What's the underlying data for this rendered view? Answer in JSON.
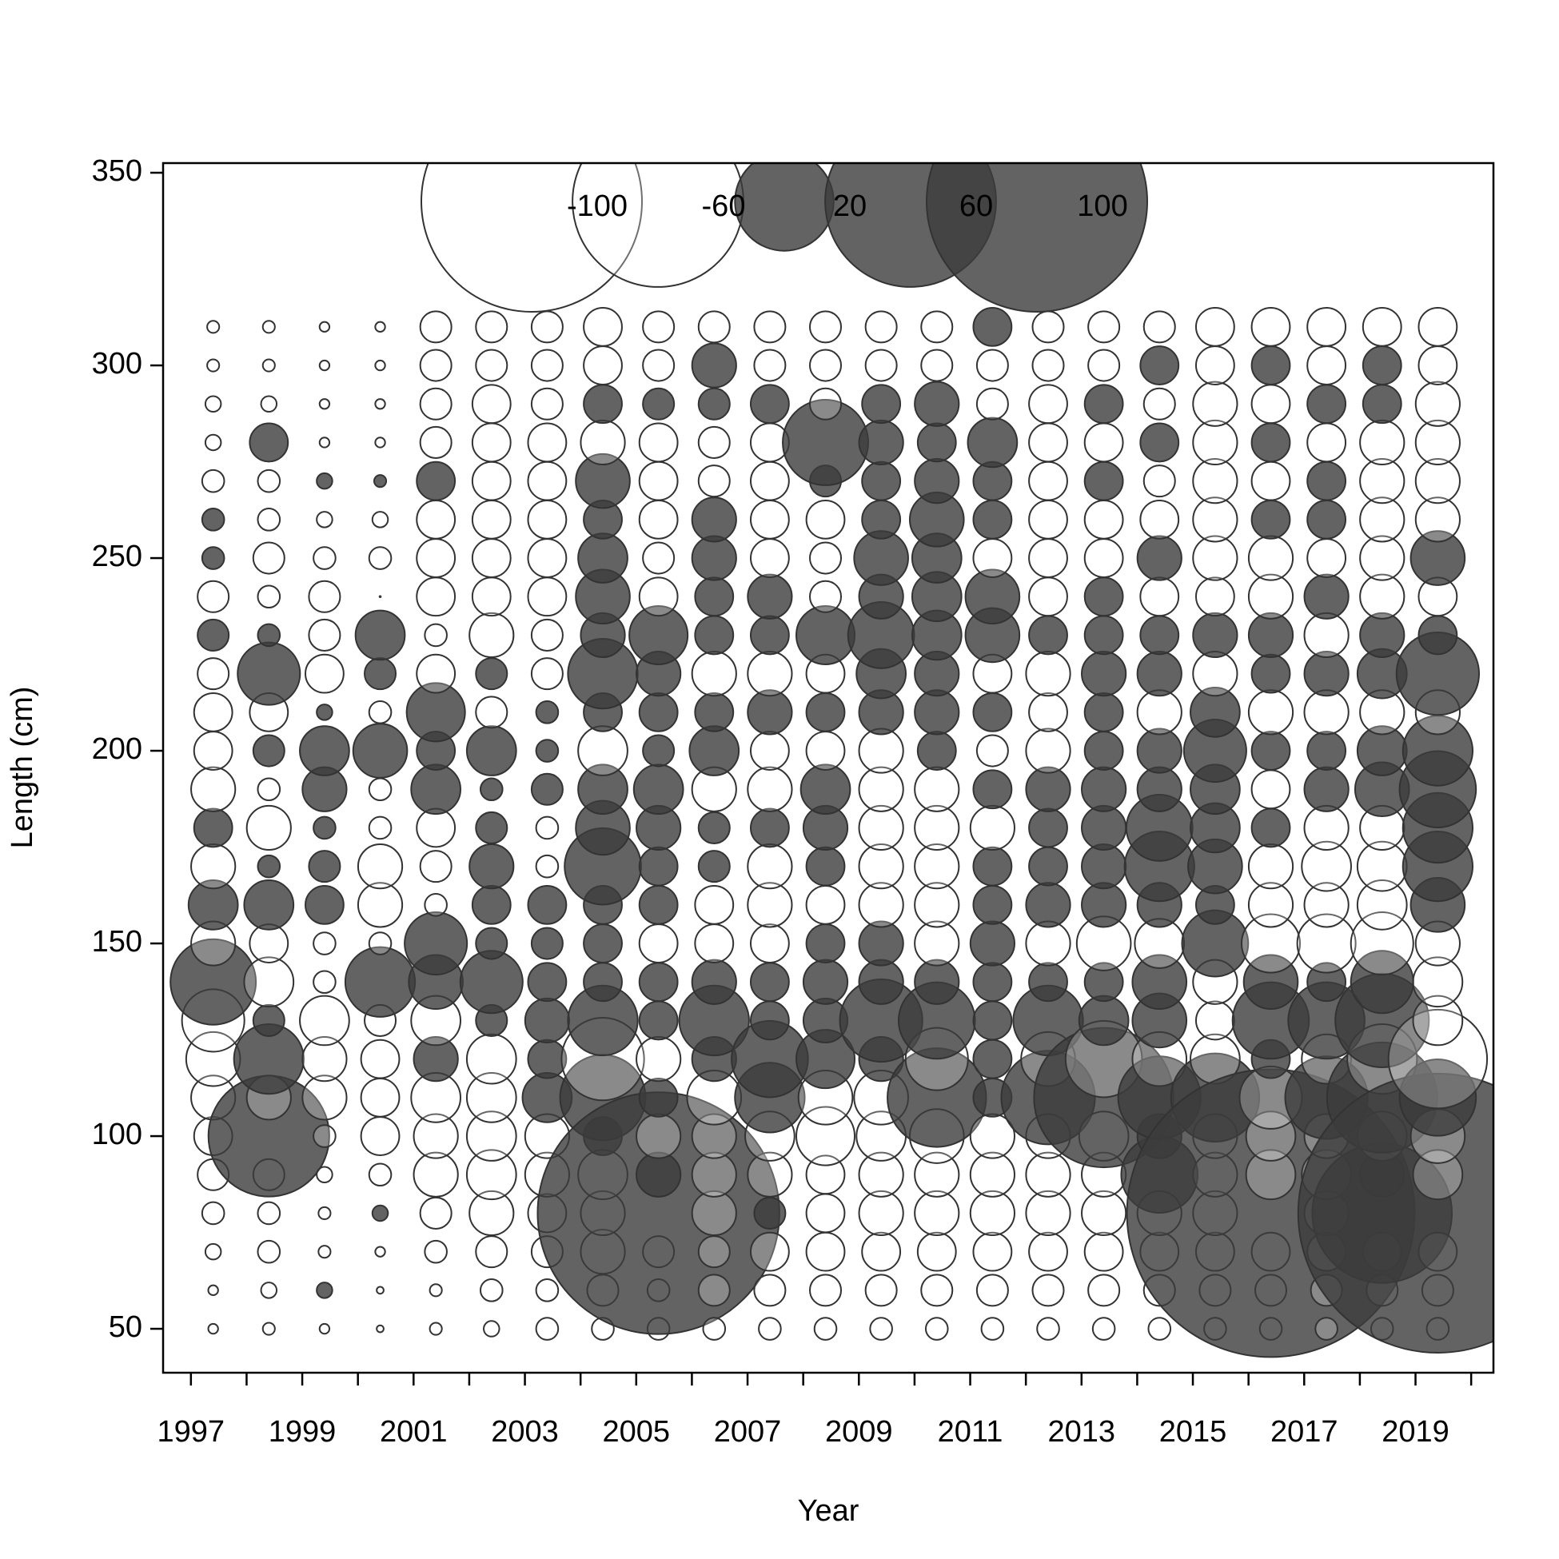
{
  "chart_data": {
    "type": "bubble",
    "x_label": "Year",
    "y_label": "Length (cm)",
    "xlim": [
      1996.5,
      2020.4
    ],
    "ylim": [
      38.6,
      352.5
    ],
    "xticks": [
      1997,
      1999,
      2001,
      2003,
      2005,
      2007,
      2009,
      2011,
      2013,
      2015,
      2017,
      2019
    ],
    "xminor_ticks": [
      1998,
      2000,
      2002,
      2004,
      2006,
      2008,
      2010,
      2012,
      2014,
      2016,
      2018,
      2020
    ],
    "yticks": [
      50,
      100,
      150,
      200,
      250,
      300,
      350
    ],
    "colors": {
      "positive": "#3c3c3c",
      "negative": "#ffffff",
      "outline": "#333333"
    },
    "size_legend": [
      -100,
      -60,
      20,
      60,
      100
    ],
    "x": [
      1997.4,
      1998.4,
      1999.4,
      2000.4,
      2001.4,
      2002.4,
      2003.4,
      2004.4,
      2005.4,
      2006.4,
      2007.4,
      2008.4,
      2009.4,
      2010.4,
      2011.4,
      2012.4,
      2013.4,
      2014.4,
      2015.4,
      2016.4,
      2017.4,
      2018.4,
      2019.4
    ],
    "y": [
      50,
      60,
      70,
      80,
      90,
      100,
      110,
      120,
      130,
      140,
      150,
      160,
      170,
      180,
      190,
      200,
      210,
      220,
      230,
      240,
      250,
      260,
      270,
      280,
      290,
      300,
      310
    ],
    "values": [
      [
        -0.2,
        -0.2,
        -0.5,
        -1,
        -2,
        -3,
        -4,
        -6,
        -8,
        15,
        -4,
        5,
        -4,
        3,
        -4,
        -3,
        -3,
        -2,
        2,
        -2,
        1,
        1,
        -1,
        -0.5,
        -0.5,
        -0.3,
        -0.3
      ],
      [
        -0.3,
        -0.5,
        -1,
        -1,
        -2,
        30,
        -4,
        10,
        2,
        -5,
        -3,
        5,
        1,
        -4,
        -1,
        2,
        -3,
        8,
        1,
        -1,
        -2,
        -1,
        -1,
        3,
        -0.5,
        -0.3,
        -0.3
      ],
      [
        -0.2,
        0.5,
        -0.3,
        -0.3,
        -0.5,
        -1,
        -4,
        -4,
        -5,
        -1,
        -1,
        3,
        2,
        1,
        4,
        5,
        0.5,
        -3,
        -2,
        -2,
        -1,
        -0.5,
        0.5,
        -0.2,
        -0.2,
        -0.2,
        -0.2
      ],
      [
        -0.1,
        -0.1,
        -0.2,
        0.5,
        -1,
        -3,
        -3,
        -3,
        -2,
        10,
        -1,
        -4,
        -4,
        -1,
        -1,
        6,
        -1,
        2,
        5,
        0,
        -1,
        -0.5,
        0.3,
        -0.2,
        -0.2,
        -0.2,
        -0.2
      ],
      [
        -0.3,
        -0.3,
        -1,
        -2,
        -4,
        -4,
        -5,
        4,
        -5,
        6,
        8,
        -1,
        -2,
        -3,
        5,
        3,
        7,
        -3,
        -1,
        -3,
        -3,
        -3,
        3,
        -2,
        -2,
        -2,
        -2
      ],
      [
        -0.5,
        -1,
        -2,
        -4,
        -5,
        -5,
        -5,
        -5,
        2,
        8,
        2,
        3,
        4,
        2,
        1,
        5,
        -2,
        2,
        -4,
        -3,
        -3,
        -3,
        -3,
        -3,
        -3,
        -2,
        -2
      ],
      [
        -1,
        -1,
        -2,
        -3,
        -4,
        -4,
        5,
        3,
        4,
        3,
        2,
        3,
        -1,
        -1,
        2,
        1,
        1,
        -2,
        -2,
        -3,
        -3,
        -3,
        -3,
        -3,
        -2,
        -2,
        -2
      ],
      [
        -1,
        -2,
        -4,
        -4,
        -5,
        3,
        15,
        -14,
        10,
        3,
        3,
        3,
        12,
        6,
        5,
        -5,
        3,
        10,
        4,
        6,
        5,
        3,
        6,
        -4,
        3,
        -3,
        -3
      ],
      [
        -1,
        -1,
        -2,
        120,
        4,
        -4,
        3,
        -4,
        3,
        3,
        -3,
        3,
        3,
        4,
        5,
        2,
        3,
        4,
        7,
        -3,
        -2,
        -3,
        -3,
        -3,
        2,
        -2,
        -2
      ],
      [
        -1,
        -2,
        -2,
        -4,
        -4,
        -4,
        -6,
        4,
        10,
        4,
        -3,
        -3,
        2,
        2,
        -4,
        5,
        3,
        -4,
        3,
        3,
        4,
        4,
        -2,
        -2,
        2,
        4,
        -2
      ],
      [
        -1,
        -2,
        -3,
        2,
        -4,
        -5,
        10,
        12,
        3,
        3,
        -3,
        -4,
        -4,
        3,
        -4,
        -3,
        4,
        -4,
        3,
        4,
        -3,
        -3,
        -3,
        -3,
        3,
        -2,
        -2
      ],
      [
        -1,
        -2,
        -3,
        -3,
        -3,
        -7,
        -6,
        7,
        4,
        4,
        3,
        -3,
        3,
        4,
        5,
        -3,
        3,
        -3,
        7,
        -2,
        -2,
        -3,
        2,
        15,
        -2,
        -2,
        -2
      ],
      [
        -1,
        -2,
        -3,
        -4,
        -4,
        -5,
        -6,
        4,
        14,
        4,
        4,
        -4,
        -4,
        -4,
        -4,
        -4,
        4,
        5,
        9,
        4,
        6,
        3,
        3,
        4,
        3,
        -2,
        -2
      ],
      [
        -1,
        -2,
        -3,
        -4,
        -4,
        -6,
        20,
        -8,
        12,
        4,
        -4,
        -4,
        -4,
        -4,
        -4,
        3,
        4,
        4,
        5,
        5,
        5,
        6,
        4,
        3,
        4,
        -2,
        -2
      ],
      [
        -1,
        -2,
        -3,
        -4,
        -4,
        -4,
        3,
        3,
        3,
        3,
        4,
        3,
        3,
        -4,
        3,
        -2,
        3,
        -3,
        6,
        6,
        -3,
        3,
        3,
        5,
        -2,
        -2,
        3
      ],
      [
        -1,
        -2,
        -3,
        -4,
        -4,
        -4,
        18,
        -6,
        10,
        3,
        -4,
        4,
        3,
        3,
        4,
        -4,
        -3,
        -4,
        3,
        -3,
        -3,
        -3,
        -3,
        -3,
        -3,
        -2,
        -2
      ],
      [
        -1,
        -2,
        -3,
        -4,
        -4,
        -5,
        40,
        -12,
        5,
        3,
        -6,
        4,
        4,
        4,
        4,
        3,
        3,
        4,
        3,
        3,
        -3,
        -3,
        3,
        -3,
        3,
        -2,
        -2
      ],
      [
        -1,
        -2,
        -3,
        -4,
        12,
        4,
        14,
        -6,
        6,
        6,
        -5,
        4,
        10,
        9,
        4,
        4,
        -4,
        4,
        3,
        -3,
        4,
        -3,
        -2,
        3,
        -2,
        3,
        -2
      ],
      [
        -1,
        -2,
        -3,
        -4,
        -4,
        -4,
        16,
        -5,
        -3,
        -4,
        9,
        3,
        6,
        5,
        5,
        8,
        5,
        -4,
        4,
        -3,
        -4,
        -4,
        -4,
        -4,
        -4,
        -3,
        -3
      ],
      [
        -1,
        -2,
        -3,
        170,
        -5,
        -5,
        -8,
        3,
        12,
        6,
        -7,
        -4,
        -4,
        3,
        -3,
        3,
        -4,
        3,
        4,
        -4,
        -4,
        3,
        -3,
        3,
        -3,
        3,
        -3
      ],
      [
        -1,
        -2,
        -3,
        -4,
        -5,
        -4,
        14,
        -5,
        12,
        3,
        -7,
        -4,
        -5,
        -4,
        4,
        3,
        -4,
        4,
        -4,
        4,
        -3,
        3,
        3,
        -3,
        3,
        -3,
        -3
      ],
      [
        -1,
        -2,
        -3,
        40,
        4,
        -5,
        25,
        -10,
        18,
        8,
        -8,
        -5,
        -5,
        -4,
        6,
        5,
        -4,
        5,
        4,
        -4,
        -4,
        -4,
        -4,
        -4,
        3,
        3,
        -3
      ],
      [
        -1,
        -2,
        -3,
        160,
        -5,
        -6,
        12,
        -20,
        -5,
        -5,
        -4,
        6,
        10,
        10,
        12,
        10,
        -4,
        14,
        3,
        -3,
        6,
        -4,
        -4,
        -4,
        -4,
        -3,
        -3
      ]
    ]
  }
}
